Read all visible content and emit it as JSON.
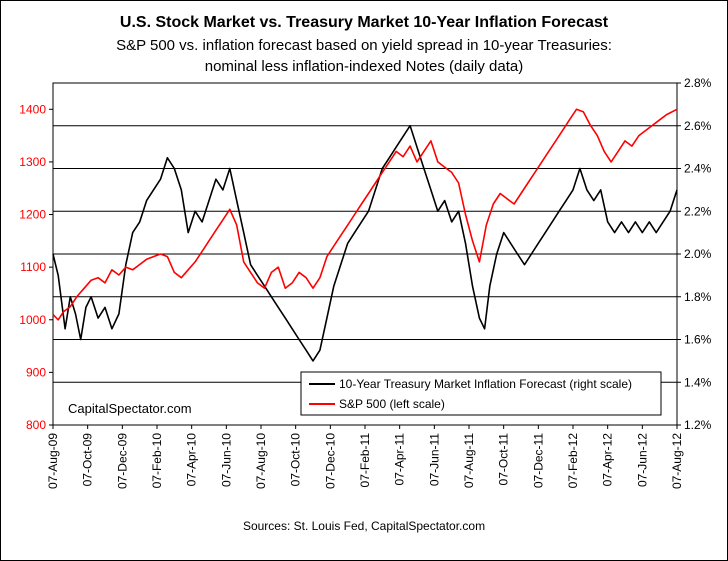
{
  "chart_data": {
    "type": "line",
    "title": "U.S. Stock Market vs. Treasury Market 10-Year Inflation Forecast",
    "subtitle_lines": [
      "S&P 500 vs. inflation forecast based on yield spread in 10-year Treasuries:",
      "nominal less inflation-indexed Notes (daily data)"
    ],
    "left_axis": {
      "min": 800,
      "max": 1450,
      "ticks": [
        800,
        900,
        1000,
        1100,
        1200,
        1300,
        1400
      ],
      "tick_labels": [
        "800",
        "900",
        "1000",
        "1100",
        "1200",
        "1300",
        "1400"
      ],
      "color": "#ff0000"
    },
    "right_axis": {
      "min": 1.2,
      "max": 2.8,
      "ticks": [
        1.2,
        1.4,
        1.6,
        1.8,
        2.0,
        2.2,
        2.4,
        2.6,
        2.8
      ],
      "tick_labels": [
        "1.2%",
        "1.4%",
        "1.6%",
        "1.8%",
        "2.0%",
        "2.2%",
        "2.4%",
        "2.6%",
        "2.8%"
      ],
      "color": "#000000"
    },
    "x_range": [
      0,
      36
    ],
    "x_tick_labels": [
      "07-Aug-09",
      "07-Oct-09",
      "07-Dec-09",
      "07-Feb-10",
      "07-Apr-10",
      "07-Jun-10",
      "07-Aug-10",
      "07-Oct-10",
      "07-Dec-10",
      "07-Feb-11",
      "07-Apr-11",
      "07-Jun-11",
      "07-Aug-11",
      "07-Oct-11",
      "07-Dec-11",
      "07-Feb-12",
      "07-Apr-12",
      "07-Jun-12",
      "07-Aug-12"
    ],
    "series": [
      {
        "name": "10-Year Treasury Market Inflation Forecast (right scale)",
        "axis": "right",
        "color": "#000000",
        "points": [
          [
            0,
            2.0
          ],
          [
            0.3,
            1.9
          ],
          [
            0.7,
            1.65
          ],
          [
            1.0,
            1.8
          ],
          [
            1.3,
            1.72
          ],
          [
            1.6,
            1.6
          ],
          [
            1.9,
            1.75
          ],
          [
            2.2,
            1.8
          ],
          [
            2.6,
            1.7
          ],
          [
            3.0,
            1.75
          ],
          [
            3.4,
            1.65
          ],
          [
            3.8,
            1.72
          ],
          [
            4.2,
            1.95
          ],
          [
            4.6,
            2.1
          ],
          [
            5.0,
            2.15
          ],
          [
            5.4,
            2.25
          ],
          [
            5.8,
            2.3
          ],
          [
            6.2,
            2.35
          ],
          [
            6.6,
            2.45
          ],
          [
            7.0,
            2.4
          ],
          [
            7.4,
            2.3
          ],
          [
            7.8,
            2.1
          ],
          [
            8.2,
            2.2
          ],
          [
            8.6,
            2.15
          ],
          [
            9.0,
            2.25
          ],
          [
            9.4,
            2.35
          ],
          [
            9.8,
            2.3
          ],
          [
            10.2,
            2.4
          ],
          [
            10.6,
            2.25
          ],
          [
            11.0,
            2.1
          ],
          [
            11.4,
            1.95
          ],
          [
            11.8,
            1.9
          ],
          [
            12.2,
            1.85
          ],
          [
            12.6,
            1.8
          ],
          [
            13.0,
            1.75
          ],
          [
            13.4,
            1.7
          ],
          [
            13.8,
            1.65
          ],
          [
            14.2,
            1.6
          ],
          [
            14.6,
            1.55
          ],
          [
            15.0,
            1.5
          ],
          [
            15.4,
            1.55
          ],
          [
            15.8,
            1.7
          ],
          [
            16.2,
            1.85
          ],
          [
            16.6,
            1.95
          ],
          [
            17.0,
            2.05
          ],
          [
            17.4,
            2.1
          ],
          [
            17.8,
            2.15
          ],
          [
            18.2,
            2.2
          ],
          [
            18.6,
            2.3
          ],
          [
            19.0,
            2.4
          ],
          [
            19.4,
            2.45
          ],
          [
            19.8,
            2.5
          ],
          [
            20.2,
            2.55
          ],
          [
            20.6,
            2.6
          ],
          [
            21.0,
            2.5
          ],
          [
            21.4,
            2.4
          ],
          [
            21.8,
            2.3
          ],
          [
            22.2,
            2.2
          ],
          [
            22.6,
            2.25
          ],
          [
            23.0,
            2.15
          ],
          [
            23.4,
            2.2
          ],
          [
            23.8,
            2.05
          ],
          [
            24.2,
            1.85
          ],
          [
            24.6,
            1.7
          ],
          [
            24.9,
            1.65
          ],
          [
            25.2,
            1.85
          ],
          [
            25.6,
            2.0
          ],
          [
            26.0,
            2.1
          ],
          [
            26.4,
            2.05
          ],
          [
            26.8,
            2.0
          ],
          [
            27.2,
            1.95
          ],
          [
            27.6,
            2.0
          ],
          [
            28.0,
            2.05
          ],
          [
            28.4,
            2.1
          ],
          [
            28.8,
            2.15
          ],
          [
            29.2,
            2.2
          ],
          [
            29.6,
            2.25
          ],
          [
            30.0,
            2.3
          ],
          [
            30.4,
            2.4
          ],
          [
            30.8,
            2.3
          ],
          [
            31.2,
            2.25
          ],
          [
            31.6,
            2.3
          ],
          [
            32.0,
            2.15
          ],
          [
            32.4,
            2.1
          ],
          [
            32.8,
            2.15
          ],
          [
            33.2,
            2.1
          ],
          [
            33.6,
            2.15
          ],
          [
            34.0,
            2.1
          ],
          [
            34.4,
            2.15
          ],
          [
            34.8,
            2.1
          ],
          [
            35.2,
            2.15
          ],
          [
            35.6,
            2.2
          ],
          [
            36.0,
            2.3
          ]
        ]
      },
      {
        "name": "S&P 500 (left scale)",
        "axis": "left",
        "color": "#ff0000",
        "points": [
          [
            0,
            1010
          ],
          [
            0.3,
            1000
          ],
          [
            0.6,
            1015
          ],
          [
            1.0,
            1025
          ],
          [
            1.4,
            1045
          ],
          [
            1.8,
            1060
          ],
          [
            2.2,
            1075
          ],
          [
            2.6,
            1080
          ],
          [
            3.0,
            1070
          ],
          [
            3.4,
            1095
          ],
          [
            3.8,
            1085
          ],
          [
            4.2,
            1100
          ],
          [
            4.6,
            1095
          ],
          [
            5.0,
            1105
          ],
          [
            5.4,
            1115
          ],
          [
            5.8,
            1120
          ],
          [
            6.2,
            1125
          ],
          [
            6.6,
            1120
          ],
          [
            7.0,
            1090
          ],
          [
            7.4,
            1080
          ],
          [
            7.8,
            1095
          ],
          [
            8.2,
            1110
          ],
          [
            8.6,
            1130
          ],
          [
            9.0,
            1150
          ],
          [
            9.4,
            1170
          ],
          [
            9.8,
            1190
          ],
          [
            10.2,
            1210
          ],
          [
            10.6,
            1180
          ],
          [
            11.0,
            1110
          ],
          [
            11.4,
            1090
          ],
          [
            11.8,
            1070
          ],
          [
            12.2,
            1060
          ],
          [
            12.6,
            1090
          ],
          [
            13.0,
            1100
          ],
          [
            13.4,
            1060
          ],
          [
            13.8,
            1070
          ],
          [
            14.2,
            1090
          ],
          [
            14.6,
            1080
          ],
          [
            15.0,
            1060
          ],
          [
            15.4,
            1080
          ],
          [
            15.8,
            1120
          ],
          [
            16.2,
            1140
          ],
          [
            16.6,
            1160
          ],
          [
            17.0,
            1180
          ],
          [
            17.4,
            1200
          ],
          [
            17.8,
            1220
          ],
          [
            18.2,
            1240
          ],
          [
            18.6,
            1260
          ],
          [
            19.0,
            1280
          ],
          [
            19.4,
            1300
          ],
          [
            19.8,
            1320
          ],
          [
            20.2,
            1310
          ],
          [
            20.6,
            1330
          ],
          [
            21.0,
            1300
          ],
          [
            21.4,
            1320
          ],
          [
            21.8,
            1340
          ],
          [
            22.2,
            1300
          ],
          [
            22.6,
            1290
          ],
          [
            23.0,
            1280
          ],
          [
            23.4,
            1260
          ],
          [
            23.8,
            1200
          ],
          [
            24.2,
            1150
          ],
          [
            24.6,
            1110
          ],
          [
            25.0,
            1180
          ],
          [
            25.4,
            1220
          ],
          [
            25.8,
            1240
          ],
          [
            26.2,
            1230
          ],
          [
            26.6,
            1220
          ],
          [
            27.0,
            1240
          ],
          [
            27.4,
            1260
          ],
          [
            27.8,
            1280
          ],
          [
            28.2,
            1300
          ],
          [
            28.6,
            1320
          ],
          [
            29.0,
            1340
          ],
          [
            29.4,
            1360
          ],
          [
            29.8,
            1380
          ],
          [
            30.2,
            1400
          ],
          [
            30.6,
            1395
          ],
          [
            31.0,
            1370
          ],
          [
            31.4,
            1350
          ],
          [
            31.8,
            1320
          ],
          [
            32.2,
            1300
          ],
          [
            32.6,
            1320
          ],
          [
            33.0,
            1340
          ],
          [
            33.4,
            1330
          ],
          [
            33.8,
            1350
          ],
          [
            34.2,
            1360
          ],
          [
            34.6,
            1370
          ],
          [
            35.0,
            1380
          ],
          [
            35.4,
            1390
          ],
          [
            36.0,
            1400
          ]
        ]
      }
    ]
  },
  "watermark": "CapitalSpectator.com",
  "source": "Sources: St. Louis Fed, CapitalSpectator.com"
}
